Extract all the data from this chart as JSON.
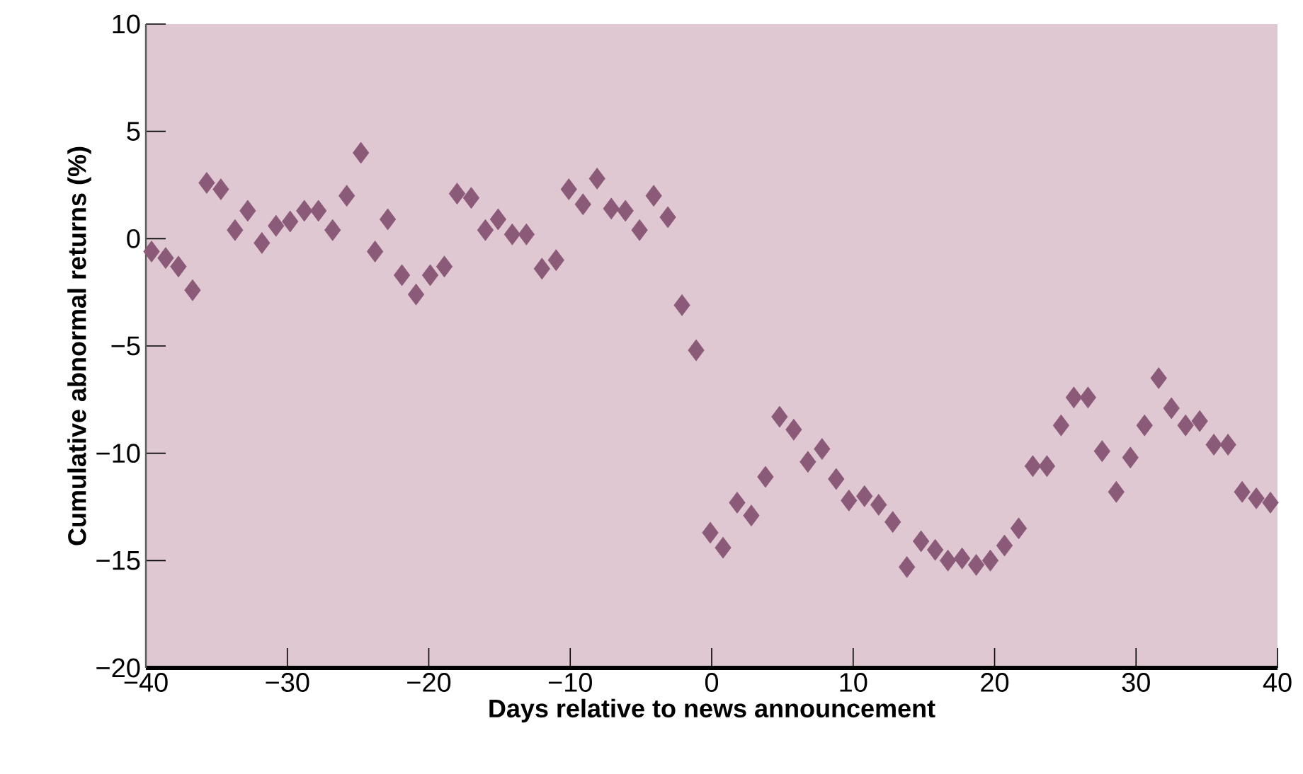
{
  "chart_data": {
    "type": "scatter",
    "xlabel": "Days relative to news announcement",
    "ylabel": "Cumulative abnormal returns (%)",
    "xlim": [
      -40,
      40
    ],
    "ylim": [
      -20,
      10
    ],
    "xticks": [
      {
        "value": -40,
        "label": "−40"
      },
      {
        "value": -30,
        "label": "−30"
      },
      {
        "value": -20,
        "label": "−20"
      },
      {
        "value": -10,
        "label": "−10"
      },
      {
        "value": 0,
        "label": "0"
      },
      {
        "value": 10,
        "label": "10"
      },
      {
        "value": 20,
        "label": "20"
      },
      {
        "value": 30,
        "label": "30"
      },
      {
        "value": 40,
        "label": "40"
      }
    ],
    "yticks": [
      {
        "value": -20,
        "label": "−20"
      },
      {
        "value": -15,
        "label": "−15"
      },
      {
        "value": -10,
        "label": "−10"
      },
      {
        "value": -5,
        "label": "−5"
      },
      {
        "value": 0,
        "label": "0"
      },
      {
        "value": 5,
        "label": "5"
      },
      {
        "value": 10,
        "label": "10"
      }
    ],
    "marker": "diamond",
    "grid": false,
    "series": [
      {
        "color": "#8b5a78",
        "x": [
          -39.6,
          -38.6,
          -37.7,
          -36.7,
          -35.7,
          -34.7,
          -33.7,
          -32.8,
          -31.8,
          -30.8,
          -29.8,
          -28.8,
          -27.8,
          -26.8,
          -25.8,
          -24.8,
          -23.8,
          -22.9,
          -21.9,
          -20.9,
          -19.9,
          -18.9,
          -18.0,
          -17.0,
          -16.0,
          -15.1,
          -14.1,
          -13.1,
          -12.0,
          -11.0,
          -10.1,
          -9.1,
          -8.1,
          -7.1,
          -6.1,
          -5.1,
          -4.1,
          -3.1,
          -2.1,
          -1.1,
          -0.1,
          0.8,
          1.8,
          2.8,
          3.8,
          4.8,
          5.8,
          6.8,
          7.8,
          8.8,
          9.7,
          10.8,
          11.8,
          12.8,
          13.8,
          14.8,
          15.8,
          16.7,
          17.7,
          18.7,
          19.7,
          20.7,
          21.7,
          22.7,
          23.7,
          24.7,
          25.6,
          26.6,
          27.6,
          28.6,
          29.6,
          30.6,
          31.6,
          32.5,
          33.5,
          34.5,
          35.5,
          36.5,
          37.5,
          38.5,
          39.5
        ],
        "values": [
          -0.6,
          -0.9,
          -1.3,
          -2.4,
          2.6,
          2.3,
          0.4,
          1.3,
          -0.2,
          0.6,
          0.8,
          1.3,
          1.3,
          0.4,
          2.0,
          4.0,
          -0.6,
          0.9,
          -1.7,
          -2.6,
          -1.7,
          -1.3,
          2.1,
          1.9,
          0.4,
          0.9,
          0.2,
          0.2,
          -1.4,
          -1.0,
          2.3,
          1.6,
          2.8,
          1.4,
          1.3,
          0.4,
          2.0,
          1.0,
          -3.1,
          -5.2,
          -13.7,
          -14.4,
          -12.3,
          -12.9,
          -11.1,
          -8.3,
          -8.9,
          -10.4,
          -9.8,
          -11.2,
          -12.2,
          -12.0,
          -12.4,
          -13.2,
          -15.3,
          -14.1,
          -14.5,
          -15.0,
          -14.9,
          -15.2,
          -15.0,
          -14.3,
          -13.5,
          -10.6,
          -10.6,
          -8.7,
          -7.4,
          -7.4,
          -9.9,
          -11.8,
          -10.2,
          -8.7,
          -6.5,
          -7.9,
          -8.7,
          -8.5,
          -9.6,
          -9.6,
          -11.8,
          -12.1,
          -12.3
        ]
      }
    ]
  }
}
